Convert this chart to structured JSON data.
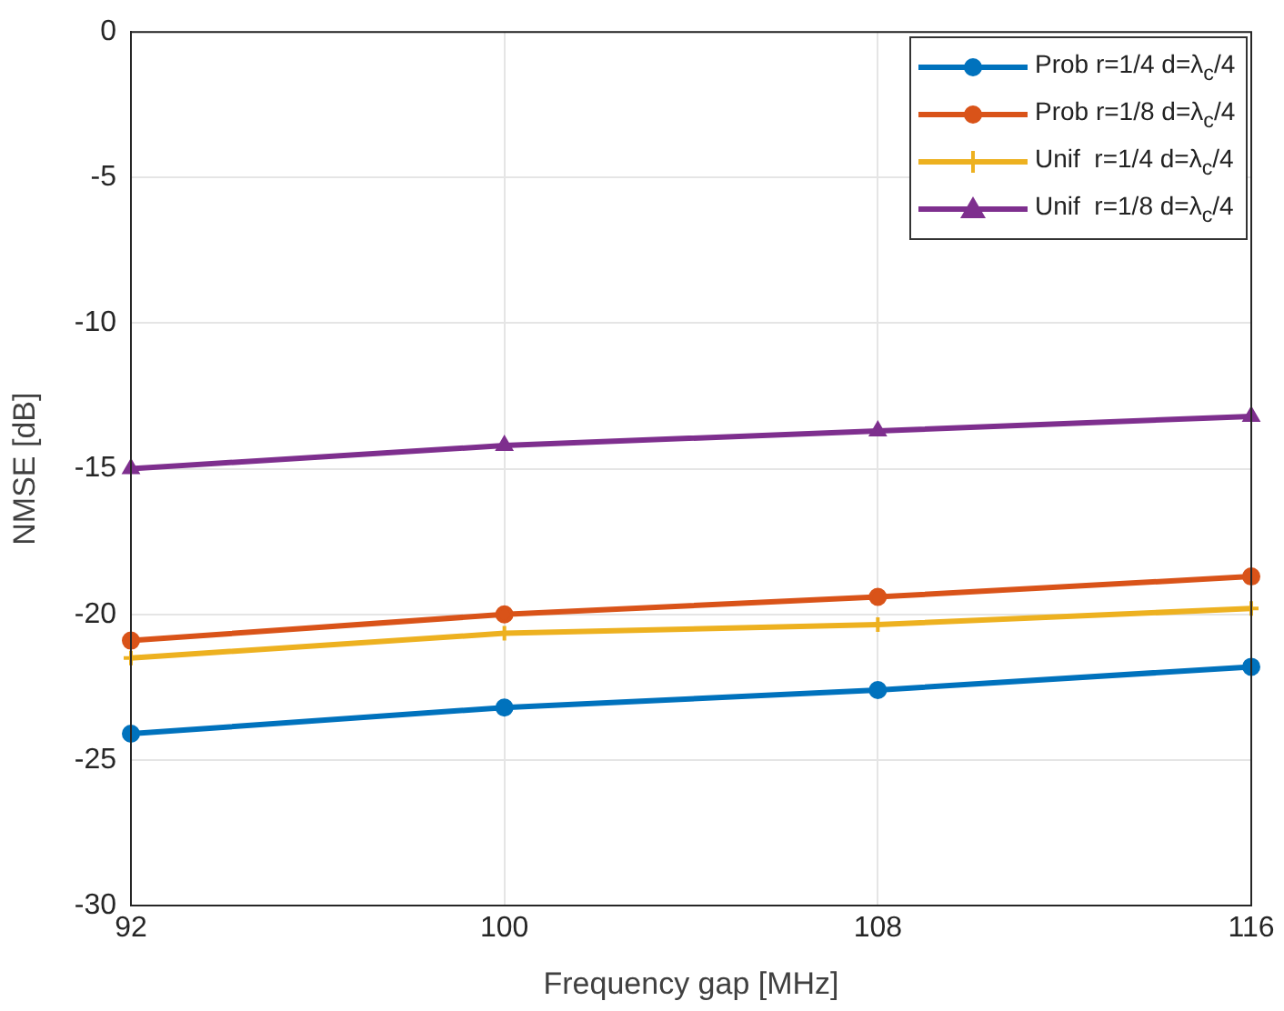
{
  "chart_data": {
    "type": "line",
    "xlabel": "Frequency gap [MHz]",
    "ylabel": "NMSE [dB]",
    "x": [
      92,
      100,
      108,
      116
    ],
    "xlim": [
      92,
      116
    ],
    "xticks": [
      92,
      100,
      108,
      116
    ],
    "ylim": [
      -30,
      0
    ],
    "yticks": [
      -30,
      -25,
      -20,
      -15,
      -10,
      -5,
      0
    ],
    "grid": true,
    "legend": "top right",
    "line_style": "solid",
    "series": [
      {
        "name": "Prob r=1/4 d=λ$_{c}$/4",
        "color": "#0072bd",
        "marker": "circle",
        "values": [
          -24.1,
          -23.2,
          -22.6,
          -21.8
        ]
      },
      {
        "name": "Prob r=1/8 d=λ$_{c}$/4",
        "color": "#d95319",
        "marker": "circle",
        "values": [
          -20.9,
          -20.0,
          -19.4,
          -18.7
        ]
      },
      {
        "name": "Unif  r=1/4 d=λ$_{c}$/4",
        "color": "#edb120",
        "marker": "cross",
        "values": [
          -21.5,
          -20.65,
          -20.35,
          -19.8
        ]
      },
      {
        "name": "Unif  r=1/8 d=λ$_{c}$/4",
        "color": "#7e2f8e",
        "marker": "triangle",
        "values": [
          -15.0,
          -14.2,
          -13.7,
          -13.2
        ]
      }
    ]
  }
}
